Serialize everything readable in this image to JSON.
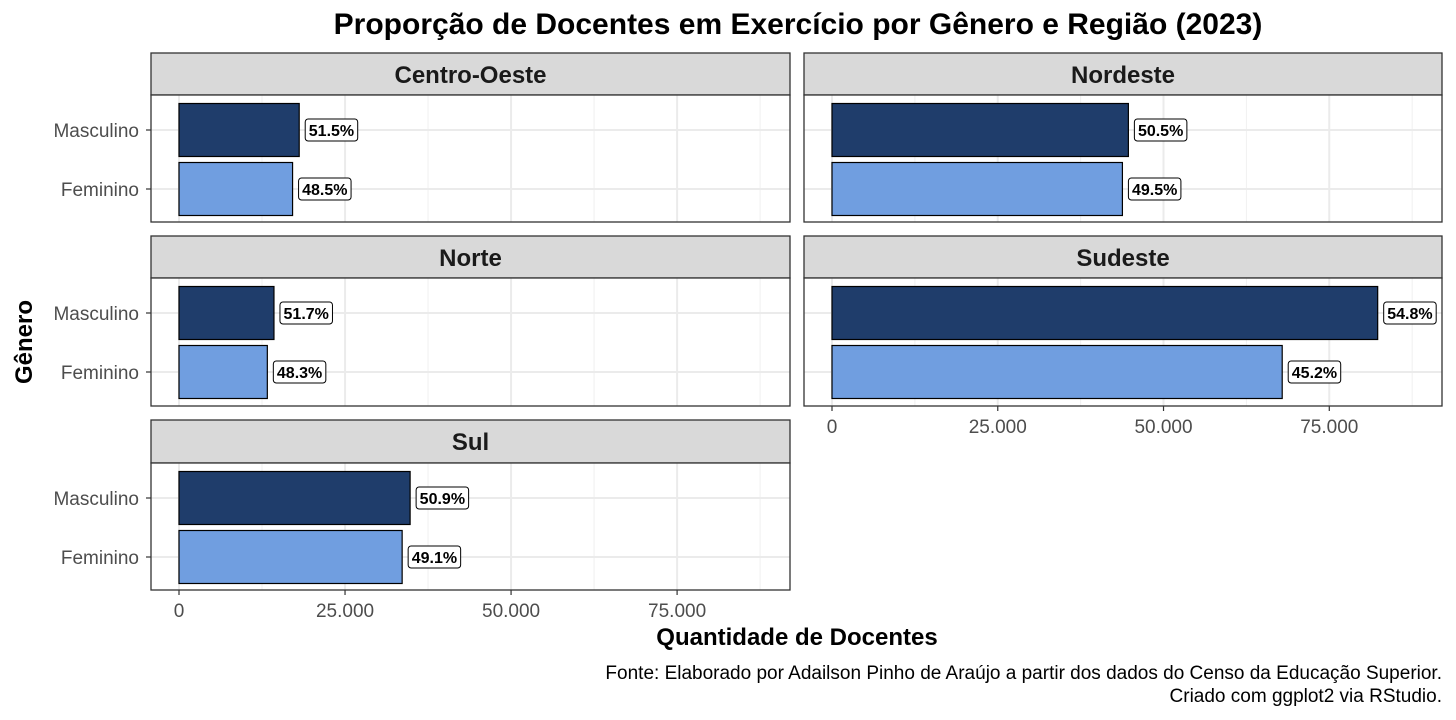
{
  "chart_data": {
    "type": "bar",
    "orientation": "horizontal",
    "title": "Proporção de Docentes em Exercício por Gênero e Região (2023)",
    "xlabel": "Quantidade de Docentes",
    "ylabel": "Gênero",
    "caption_lines": [
      "Fonte: Elaborado por Adailson Pinho de Araújo a partir dos dados do Censo da Educação Superior.",
      "Criado com ggplot2 via RStudio."
    ],
    "xlim": [
      0,
      92000
    ],
    "x_ticks": [
      0,
      25000,
      50000,
      75000
    ],
    "x_tick_labels": [
      "0",
      "25.000",
      "50.000",
      "75.000"
    ],
    "categories": [
      "Masculino",
      "Feminino"
    ],
    "grid": true,
    "legend": "none",
    "colors": {
      "Masculino": "#1f3d6b",
      "Feminino": "#709ee0"
    },
    "facets": [
      {
        "name": "Centro-Oeste",
        "values": [
          18100,
          17100
        ],
        "labels": [
          "51.5%",
          "48.5%"
        ]
      },
      {
        "name": "Nordeste",
        "values": [
          44700,
          43800
        ],
        "labels": [
          "50.5%",
          "49.5%"
        ]
      },
      {
        "name": "Norte",
        "values": [
          14300,
          13300
        ],
        "labels": [
          "51.7%",
          "48.3%"
        ]
      },
      {
        "name": "Sudeste",
        "values": [
          82300,
          67900
        ],
        "labels": [
          "54.8%",
          "45.2%"
        ]
      },
      {
        "name": "Sul",
        "values": [
          34800,
          33600
        ],
        "labels": [
          "50.9%",
          "49.1%"
        ]
      }
    ]
  }
}
